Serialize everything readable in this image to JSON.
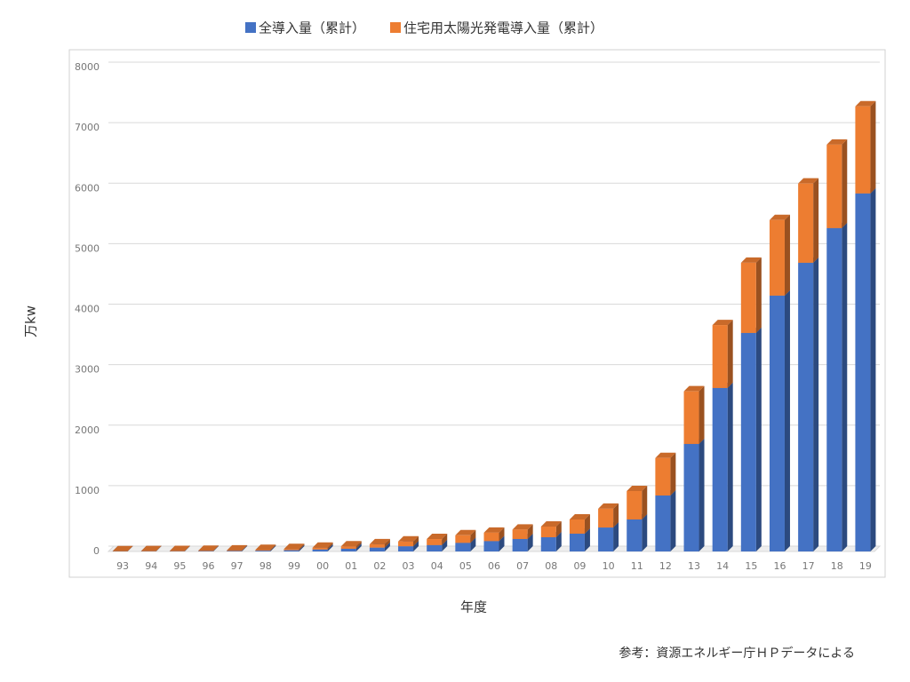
{
  "chart_data": {
    "type": "bar3d_stacked",
    "x_label": "年度",
    "y_label": "万kw",
    "note": "参考：資源エネルギー庁ＨＰデータによる",
    "categories": [
      "93",
      "94",
      "95",
      "96",
      "97",
      "98",
      "99",
      "00",
      "01",
      "02",
      "03",
      "04",
      "05",
      "06",
      "07",
      "08",
      "09",
      "10",
      "11",
      "12",
      "13",
      "14",
      "15",
      "16",
      "17",
      "18",
      "19"
    ],
    "series": [
      {
        "name": "全導入量（累計）",
        "color": "#4472c4",
        "values": [
          2,
          3,
          4,
          6,
          9,
          13,
          21,
          33,
          45,
          64,
          86,
          105,
          142,
          171,
          206,
          235,
          294,
          396,
          529,
          925,
          1777,
          2702,
          3612,
          4229,
          4772,
          5345,
          5918
        ]
      },
      {
        "name": "住宅用太陽光発電導入量（累計）",
        "color": "#ed7d31",
        "values": [
          1,
          2,
          3,
          5,
          8,
          12,
          20,
          30,
          40,
          55,
          80,
          100,
          125,
          140,
          155,
          176,
          235,
          310,
          470,
          620,
          870,
          1040,
          1160,
          1250,
          1310,
          1380,
          1440
        ]
      }
    ],
    "ylim": [
      0,
      8000
    ],
    "yticks": [
      0,
      1000,
      2000,
      3000,
      4000,
      5000,
      6000,
      7000,
      8000
    ],
    "grid": true
  }
}
